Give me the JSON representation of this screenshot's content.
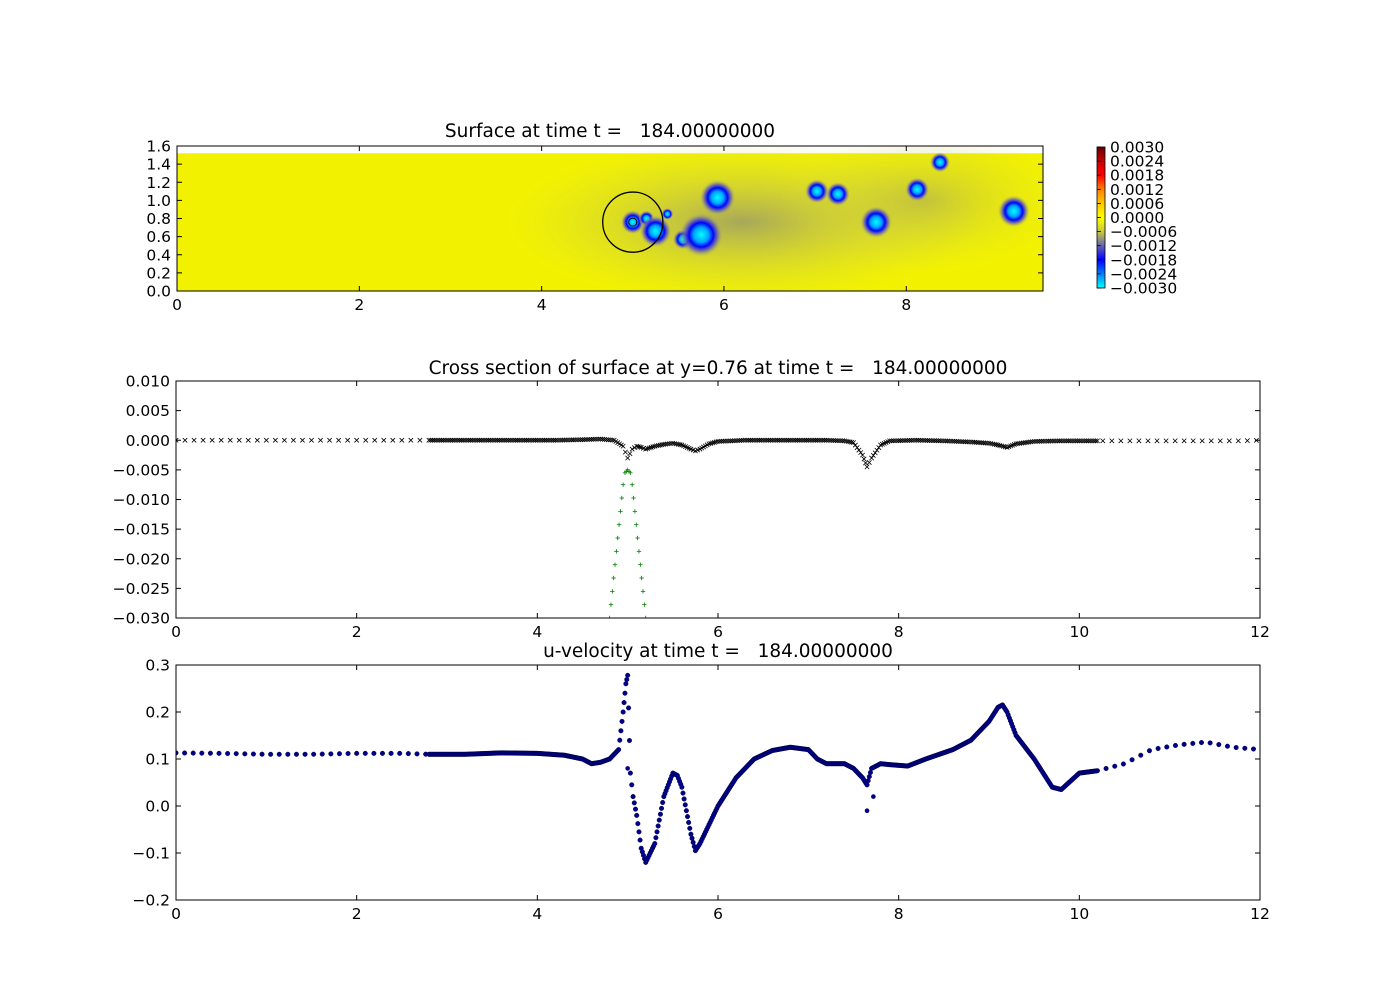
{
  "chart_data": [
    {
      "type": "heatmap",
      "title": "Surface at time t =   184.00000000",
      "xlim": [
        0,
        9.5
      ],
      "ylim": [
        0,
        1.6
      ],
      "xticks": [
        0,
        2,
        4,
        6,
        8
      ],
      "yticks": [
        "0.0",
        "0.2",
        "0.4",
        "0.6",
        "0.8",
        "1.0",
        "1.2",
        "1.4",
        "1.6"
      ],
      "field_extent": {
        "x": [
          0,
          9.5
        ],
        "y": [
          0,
          1.52
        ]
      },
      "background_value": 0.0,
      "colorbar": {
        "range": [
          -0.003,
          0.003
        ],
        "ticks": [
          "0.0030",
          "0.0024",
          "0.0018",
          "0.0012",
          "0.0006",
          "0.0000",
          "−0.0006",
          "−0.0012",
          "−0.0018",
          "−0.0024",
          "−0.0030"
        ],
        "colors": [
          "#00ffff",
          "#0080ff",
          "#0000ff",
          "#6464b4",
          "#c8c83c",
          "#ffff00",
          "#ffc800",
          "#ff8000",
          "#ff0000",
          "#c80000",
          "#640000"
        ]
      },
      "features": [
        {
          "x": 5.0,
          "y": 0.76,
          "r": 0.06,
          "value": -0.003
        },
        {
          "x": 5.15,
          "y": 0.8,
          "r": 0.04,
          "value": -0.002
        },
        {
          "x": 5.25,
          "y": 0.66,
          "r": 0.08,
          "value": -0.003
        },
        {
          "x": 5.38,
          "y": 0.85,
          "r": 0.03,
          "value": -0.002
        },
        {
          "x": 5.55,
          "y": 0.57,
          "r": 0.05,
          "value": -0.0025
        },
        {
          "x": 5.75,
          "y": 0.62,
          "r": 0.11,
          "value": -0.003
        },
        {
          "x": 5.93,
          "y": 1.03,
          "r": 0.09,
          "value": -0.003
        },
        {
          "x": 7.02,
          "y": 1.1,
          "r": 0.06,
          "value": -0.0028
        },
        {
          "x": 7.25,
          "y": 1.07,
          "r": 0.06,
          "value": -0.0028
        },
        {
          "x": 7.67,
          "y": 0.76,
          "r": 0.08,
          "value": -0.003
        },
        {
          "x": 8.12,
          "y": 1.12,
          "r": 0.06,
          "value": -0.0028
        },
        {
          "x": 8.37,
          "y": 1.42,
          "r": 0.05,
          "value": -0.0025
        },
        {
          "x": 9.18,
          "y": 0.88,
          "r": 0.08,
          "value": -0.003
        }
      ],
      "overlay_circle": {
        "x": 5.0,
        "y": 0.76,
        "r": 0.33
      }
    },
    {
      "type": "scatter",
      "title": "Cross section of surface at y=0.76 at time t =   184.00000000",
      "xlim": [
        0,
        12
      ],
      "ylim": [
        -0.03,
        0.01
      ],
      "xticks": [
        "0",
        "2",
        "4",
        "6",
        "8",
        "10",
        "12"
      ],
      "yticks": [
        "0.010",
        "0.005",
        "0.000",
        "−0.005",
        "−0.010",
        "−0.015",
        "−0.020",
        "−0.025",
        "−0.030"
      ],
      "series": [
        {
          "marker": "x",
          "color": "#000000",
          "x": [
            0,
            0.3,
            0.6,
            0.9,
            1.2,
            1.5,
            1.8,
            2.1,
            2.4,
            2.8,
            3.0,
            3.3,
            3.6,
            3.9,
            4.2,
            4.5,
            4.7,
            4.85,
            4.95,
            5.0,
            5.05,
            5.1,
            5.15,
            5.2,
            5.3,
            5.4,
            5.5,
            5.6,
            5.7,
            5.75,
            5.8,
            5.9,
            6.0,
            6.3,
            6.6,
            6.9,
            7.2,
            7.4,
            7.5,
            7.6,
            7.65,
            7.7,
            7.8,
            7.9,
            8.2,
            8.5,
            8.8,
            9.0,
            9.1,
            9.2,
            9.3,
            9.5,
            9.8,
            10.2,
            10.6,
            11.0,
            11.4,
            11.8,
            12.0
          ],
          "y": [
            0,
            0,
            0,
            0,
            0,
            0,
            0,
            0,
            0,
            0,
            0,
            0,
            0,
            0,
            0,
            0.0001,
            0.0002,
            0,
            -0.001,
            -0.003,
            -0.0015,
            -0.001,
            -0.0012,
            -0.0015,
            -0.001,
            -0.0007,
            -0.0005,
            -0.0008,
            -0.0015,
            -0.0018,
            -0.0015,
            -0.0006,
            -0.0002,
            0,
            0,
            0,
            0,
            -0.0001,
            -0.0004,
            -0.0025,
            -0.0045,
            -0.003,
            -0.0008,
            -0.0001,
            0,
            -0.0001,
            -0.0003,
            -0.0005,
            -0.0008,
            -0.0012,
            -0.0006,
            -0.0002,
            -0.0001,
            -0.0001,
            -0.0001,
            -0.0001,
            -0.0001,
            -0.0001,
            0
          ]
        },
        {
          "marker": "+",
          "color": "#008000",
          "x": [
            4.8,
            4.83,
            4.86,
            4.89,
            4.92,
            4.95,
            4.97,
            5.0,
            5.03,
            5.05,
            5.08,
            5.11,
            5.14,
            5.17,
            5.2
          ],
          "y": [
            -0.03,
            -0.0255,
            -0.021,
            -0.0165,
            -0.012,
            -0.0075,
            -0.0055,
            -0.005,
            -0.0055,
            -0.0075,
            -0.012,
            -0.0165,
            -0.021,
            -0.0255,
            -0.03
          ]
        }
      ]
    },
    {
      "type": "scatter",
      "title": "u-velocity at time t =   184.00000000",
      "xlim": [
        0,
        12
      ],
      "ylim": [
        -0.2,
        0.3
      ],
      "xticks": [
        "0",
        "2",
        "4",
        "6",
        "8",
        "10",
        "12"
      ],
      "yticks": [
        "0.3",
        "0.2",
        "0.1",
        "0.0",
        "−0.1",
        "−0.2"
      ],
      "series": [
        {
          "marker": "o",
          "color": "#00008b",
          "x": [
            0,
            0.5,
            1.0,
            1.5,
            2.0,
            2.5,
            2.8,
            3.2,
            3.6,
            4.0,
            4.3,
            4.5,
            4.6,
            4.7,
            4.8,
            4.9,
            4.95,
            4.98,
            5.0,
            5.03,
            5.06,
            5.1,
            5.15,
            5.2,
            5.3,
            5.4,
            5.5,
            5.55,
            5.6,
            5.7,
            5.75,
            5.8,
            5.9,
            6.0,
            6.2,
            6.4,
            6.6,
            6.8,
            7.0,
            7.1,
            7.2,
            7.4,
            7.5,
            7.6,
            7.65,
            7.7,
            7.8,
            7.9,
            8.1,
            8.3,
            8.6,
            8.8,
            9.0,
            9.1,
            9.15,
            9.2,
            9.3,
            9.5,
            9.7,
            9.8,
            10.0,
            10.2,
            10.5,
            10.8,
            11.1,
            11.4,
            11.7,
            12.0
          ],
          "y": [
            0.113,
            0.112,
            0.11,
            0.11,
            0.112,
            0.112,
            0.11,
            0.11,
            0.113,
            0.112,
            0.108,
            0.1,
            0.09,
            0.093,
            0.1,
            0.12,
            0.2,
            0.26,
            0.278,
            0.07,
            0.02,
            -0.02,
            -0.09,
            -0.12,
            -0.08,
            0.02,
            0.07,
            0.065,
            0.04,
            -0.06,
            -0.095,
            -0.08,
            -0.04,
            0.0,
            0.06,
            0.1,
            0.118,
            0.125,
            0.12,
            0.1,
            0.09,
            0.09,
            0.08,
            0.06,
            0.045,
            0.08,
            0.09,
            0.088,
            0.085,
            0.1,
            0.12,
            0.14,
            0.18,
            0.21,
            0.215,
            0.2,
            0.15,
            0.1,
            0.04,
            0.035,
            0.07,
            0.075,
            0.09,
            0.12,
            0.13,
            0.136,
            0.125,
            0.12
          ]
        }
      ]
    }
  ]
}
